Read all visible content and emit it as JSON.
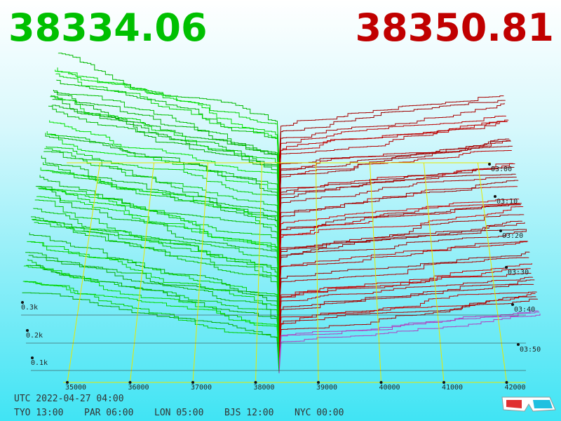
{
  "header": {
    "bid_price": "38334.06",
    "ask_price": "38350.81"
  },
  "price_axis": {
    "labels": [
      "35000",
      "36000",
      "37000",
      "38000",
      "39000",
      "40000",
      "41000",
      "42000"
    ]
  },
  "volume_axis": {
    "labels": [
      "0.3k",
      "0.2k",
      "0.1k"
    ]
  },
  "time_axis": {
    "labels": [
      "03:00",
      "03:10",
      "03:20",
      "03:30",
      "03:40",
      "03:50"
    ]
  },
  "footer": {
    "utc": "UTC 2022-04-27 04:00",
    "zones": [
      "TYO 13:00",
      "PAR 06:00",
      "LON 05:00",
      "BJS 12:00",
      "NYC 00:00"
    ]
  }
}
